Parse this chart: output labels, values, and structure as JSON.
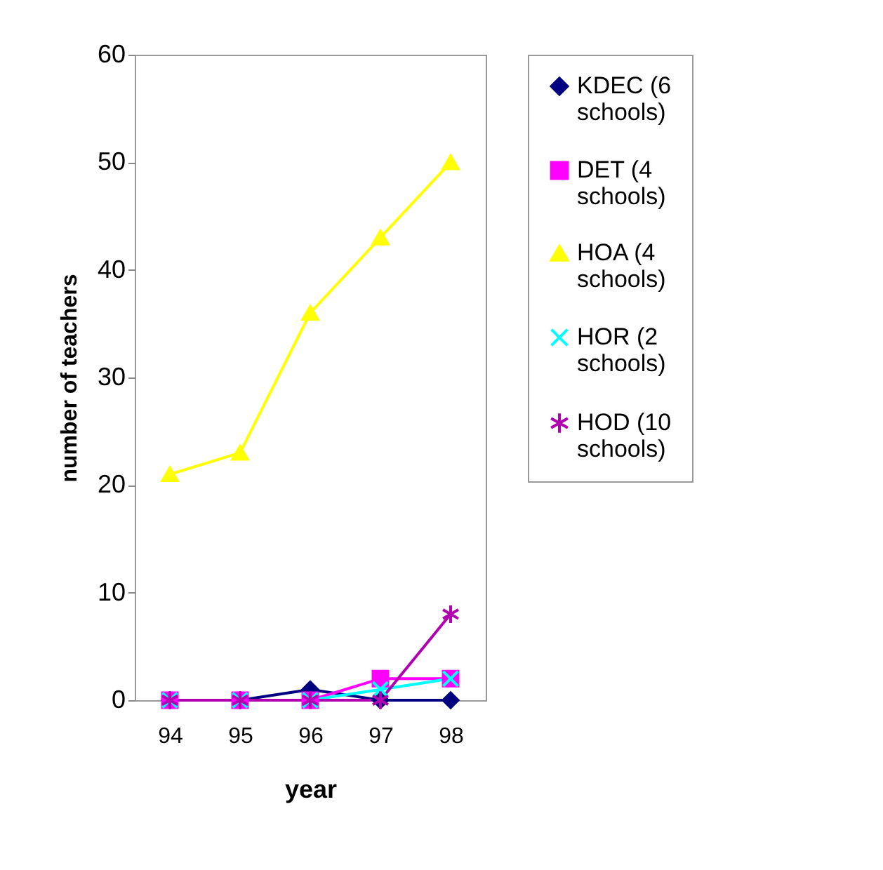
{
  "chart_data": {
    "type": "line",
    "xlabel": "year",
    "ylabel": "number of teachers",
    "categories": [
      "94",
      "95",
      "96",
      "97",
      "98"
    ],
    "ylim": [
      0,
      60
    ],
    "yticks": [
      0,
      10,
      20,
      30,
      40,
      50,
      60
    ],
    "grid": false,
    "legend": "right",
    "series": [
      {
        "name": "KDEC (6 schools)",
        "color": "#000080",
        "marker": "diamond",
        "values": [
          0,
          0,
          1,
          0,
          0
        ]
      },
      {
        "name": "DET (4 schools)",
        "color": "#ff00ff",
        "marker": "square",
        "values": [
          0,
          0,
          0,
          2,
          2
        ]
      },
      {
        "name": "HOA (4 schools)",
        "color": "#ffff00",
        "marker": "triangle",
        "values": [
          21,
          23,
          36,
          43,
          50
        ]
      },
      {
        "name": "HOR (2 schools)",
        "color": "#00ffff",
        "marker": "cross",
        "values": [
          0,
          0,
          0,
          1,
          2
        ]
      },
      {
        "name": "HOD (10 schools)",
        "color": "#b000b0",
        "marker": "cross",
        "values": [
          0,
          0,
          0,
          0,
          8
        ]
      }
    ]
  }
}
